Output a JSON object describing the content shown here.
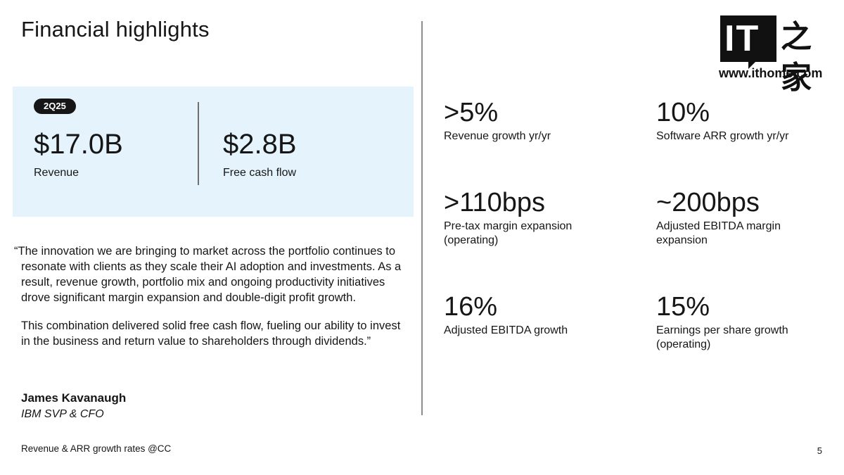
{
  "slide": {
    "title": "Financial highlights",
    "page_number": "5",
    "footnote": "Revenue & ARR growth rates @CC"
  },
  "hero": {
    "period_badge": "2Q25",
    "metrics": [
      {
        "value": "$17.0B",
        "label": "Revenue"
      },
      {
        "value": "$2.8B",
        "label": "Free cash flow"
      }
    ]
  },
  "quote": {
    "paragraph1": "“The innovation we are bringing to market across the portfolio continues to resonate with clients as they scale their AI adoption and investments. As a result, revenue growth, portfolio mix and ongoing productivity initiatives drove significant margin expansion and double-digit profit growth.",
    "paragraph2": "This combination delivered solid free cash flow, fueling our ability to invest in the business and return value to shareholders through dividends.”",
    "speaker_name": "James Kavanaugh",
    "speaker_role": "IBM SVP & CFO"
  },
  "stats": [
    {
      "value": ">5%",
      "label": "Revenue growth yr/yr"
    },
    {
      "value": "10%",
      "label": "Software ARR growth yr/yr"
    },
    {
      "value": ">110bps",
      "label": "Pre-tax margin expansion (operating)"
    },
    {
      "value": "~200bps",
      "label": "Adjusted EBITDA margin expansion"
    },
    {
      "value": "16%",
      "label": "Adjusted EBITDA growth"
    },
    {
      "value": "15%",
      "label": "Earnings per share growth (operating)"
    }
  ],
  "watermark": {
    "mark_text": "IT",
    "chinese_text": "之家",
    "url": "www.ithome.com"
  }
}
